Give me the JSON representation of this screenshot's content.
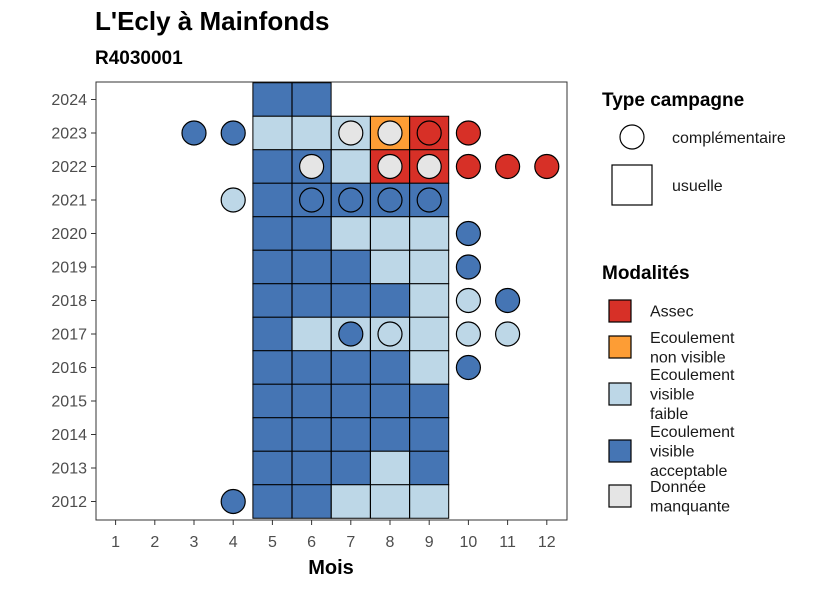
{
  "chart_data": {
    "type": "heatmap",
    "title": "L'Ecly à Mainfonds",
    "subtitle": "R4030001",
    "xlabel": "Mois",
    "ylabel": "",
    "x_ticks": [
      "1",
      "2",
      "3",
      "4",
      "5",
      "6",
      "7",
      "8",
      "9",
      "10",
      "11",
      "12"
    ],
    "y_ticks": [
      "2012",
      "2013",
      "2014",
      "2015",
      "2016",
      "2017",
      "2018",
      "2019",
      "2020",
      "2021",
      "2022",
      "2023",
      "2024"
    ],
    "colors": {
      "Assec": "#d73027",
      "Ecoulement non visible": "#fd9d35",
      "Ecoulement visible faible": "#bdd7e7",
      "Ecoulement visible acceptable": "#4575b4",
      "Donnée manquante": "#e5e5e5"
    },
    "legend_campaign": {
      "title": "Type campagne",
      "items": [
        {
          "label": "complémentaire",
          "shape": "circle"
        },
        {
          "label": "usuelle",
          "shape": "square"
        }
      ]
    },
    "legend_modalities": {
      "title": "Modalités",
      "items": [
        {
          "key": "Assec",
          "lines": [
            "Assec"
          ]
        },
        {
          "key": "Ecoulement non visible",
          "lines": [
            "Ecoulement",
            "non visible"
          ]
        },
        {
          "key": "Ecoulement visible faible",
          "lines": [
            "Ecoulement",
            "visible",
            "faible"
          ]
        },
        {
          "key": "Ecoulement visible acceptable",
          "lines": [
            "Ecoulement",
            "visible",
            "acceptable"
          ]
        },
        {
          "key": "Donnée manquante",
          "lines": [
            "Donnée",
            "manquante"
          ]
        }
      ]
    },
    "squares": [
      {
        "year": 2024,
        "month": 5,
        "v": "Ecoulement visible acceptable"
      },
      {
        "year": 2024,
        "month": 6,
        "v": "Ecoulement visible acceptable"
      },
      {
        "year": 2023,
        "month": 5,
        "v": "Ecoulement visible faible"
      },
      {
        "year": 2023,
        "month": 6,
        "v": "Ecoulement visible faible"
      },
      {
        "year": 2023,
        "month": 7,
        "v": "Ecoulement visible faible"
      },
      {
        "year": 2023,
        "month": 8,
        "v": "Ecoulement non visible"
      },
      {
        "year": 2023,
        "month": 9,
        "v": "Assec"
      },
      {
        "year": 2022,
        "month": 5,
        "v": "Ecoulement visible acceptable"
      },
      {
        "year": 2022,
        "month": 6,
        "v": "Ecoulement visible acceptable"
      },
      {
        "year": 2022,
        "month": 7,
        "v": "Ecoulement visible faible"
      },
      {
        "year": 2022,
        "month": 8,
        "v": "Assec"
      },
      {
        "year": 2022,
        "month": 9,
        "v": "Assec"
      },
      {
        "year": 2021,
        "month": 5,
        "v": "Ecoulement visible acceptable"
      },
      {
        "year": 2021,
        "month": 6,
        "v": "Ecoulement visible acceptable"
      },
      {
        "year": 2021,
        "month": 7,
        "v": "Ecoulement visible acceptable"
      },
      {
        "year": 2021,
        "month": 8,
        "v": "Ecoulement visible acceptable"
      },
      {
        "year": 2021,
        "month": 9,
        "v": "Ecoulement visible acceptable"
      },
      {
        "year": 2020,
        "month": 5,
        "v": "Ecoulement visible acceptable"
      },
      {
        "year": 2020,
        "month": 6,
        "v": "Ecoulement visible acceptable"
      },
      {
        "year": 2020,
        "month": 7,
        "v": "Ecoulement visible faible"
      },
      {
        "year": 2020,
        "month": 8,
        "v": "Ecoulement visible faible"
      },
      {
        "year": 2020,
        "month": 9,
        "v": "Ecoulement visible faible"
      },
      {
        "year": 2019,
        "month": 5,
        "v": "Ecoulement visible acceptable"
      },
      {
        "year": 2019,
        "month": 6,
        "v": "Ecoulement visible acceptable"
      },
      {
        "year": 2019,
        "month": 7,
        "v": "Ecoulement visible acceptable"
      },
      {
        "year": 2019,
        "month": 8,
        "v": "Ecoulement visible faible"
      },
      {
        "year": 2019,
        "month": 9,
        "v": "Ecoulement visible faible"
      },
      {
        "year": 2018,
        "month": 5,
        "v": "Ecoulement visible acceptable"
      },
      {
        "year": 2018,
        "month": 6,
        "v": "Ecoulement visible acceptable"
      },
      {
        "year": 2018,
        "month": 7,
        "v": "Ecoulement visible acceptable"
      },
      {
        "year": 2018,
        "month": 8,
        "v": "Ecoulement visible acceptable"
      },
      {
        "year": 2018,
        "month": 9,
        "v": "Ecoulement visible faible"
      },
      {
        "year": 2017,
        "month": 5,
        "v": "Ecoulement visible acceptable"
      },
      {
        "year": 2017,
        "month": 6,
        "v": "Ecoulement visible faible"
      },
      {
        "year": 2017,
        "month": 7,
        "v": "Ecoulement visible faible"
      },
      {
        "year": 2017,
        "month": 8,
        "v": "Ecoulement visible faible"
      },
      {
        "year": 2017,
        "month": 9,
        "v": "Ecoulement visible faible"
      },
      {
        "year": 2016,
        "month": 5,
        "v": "Ecoulement visible acceptable"
      },
      {
        "year": 2016,
        "month": 6,
        "v": "Ecoulement visible acceptable"
      },
      {
        "year": 2016,
        "month": 7,
        "v": "Ecoulement visible acceptable"
      },
      {
        "year": 2016,
        "month": 8,
        "v": "Ecoulement visible acceptable"
      },
      {
        "year": 2016,
        "month": 9,
        "v": "Ecoulement visible faible"
      },
      {
        "year": 2015,
        "month": 5,
        "v": "Ecoulement visible acceptable"
      },
      {
        "year": 2015,
        "month": 6,
        "v": "Ecoulement visible acceptable"
      },
      {
        "year": 2015,
        "month": 7,
        "v": "Ecoulement visible acceptable"
      },
      {
        "year": 2015,
        "month": 8,
        "v": "Ecoulement visible acceptable"
      },
      {
        "year": 2015,
        "month": 9,
        "v": "Ecoulement visible acceptable"
      },
      {
        "year": 2014,
        "month": 5,
        "v": "Ecoulement visible acceptable"
      },
      {
        "year": 2014,
        "month": 6,
        "v": "Ecoulement visible acceptable"
      },
      {
        "year": 2014,
        "month": 7,
        "v": "Ecoulement visible acceptable"
      },
      {
        "year": 2014,
        "month": 8,
        "v": "Ecoulement visible acceptable"
      },
      {
        "year": 2014,
        "month": 9,
        "v": "Ecoulement visible acceptable"
      },
      {
        "year": 2013,
        "month": 5,
        "v": "Ecoulement visible acceptable"
      },
      {
        "year": 2013,
        "month": 6,
        "v": "Ecoulement visible acceptable"
      },
      {
        "year": 2013,
        "month": 7,
        "v": "Ecoulement visible acceptable"
      },
      {
        "year": 2013,
        "month": 8,
        "v": "Ecoulement visible faible"
      },
      {
        "year": 2013,
        "month": 9,
        "v": "Ecoulement visible acceptable"
      },
      {
        "year": 2012,
        "month": 5,
        "v": "Ecoulement visible acceptable"
      },
      {
        "year": 2012,
        "month": 6,
        "v": "Ecoulement visible acceptable"
      },
      {
        "year": 2012,
        "month": 7,
        "v": "Ecoulement visible faible"
      },
      {
        "year": 2012,
        "month": 8,
        "v": "Ecoulement visible faible"
      },
      {
        "year": 2012,
        "month": 9,
        "v": "Ecoulement visible faible"
      }
    ],
    "circles": [
      {
        "year": 2023,
        "month": 3,
        "v": "Ecoulement visible acceptable"
      },
      {
        "year": 2023,
        "month": 4,
        "v": "Ecoulement visible acceptable"
      },
      {
        "year": 2023,
        "month": 7,
        "v": "Donnée manquante"
      },
      {
        "year": 2023,
        "month": 8,
        "v": "Donnée manquante"
      },
      {
        "year": 2023,
        "month": 9,
        "v": "Assec"
      },
      {
        "year": 2023,
        "month": 10,
        "v": "Assec"
      },
      {
        "year": 2022,
        "month": 6,
        "v": "Donnée manquante"
      },
      {
        "year": 2022,
        "month": 8,
        "v": "Donnée manquante"
      },
      {
        "year": 2022,
        "month": 9,
        "v": "Donnée manquante"
      },
      {
        "year": 2022,
        "month": 10,
        "v": "Assec"
      },
      {
        "year": 2022,
        "month": 11,
        "v": "Assec"
      },
      {
        "year": 2022,
        "month": 12,
        "v": "Assec"
      },
      {
        "year": 2021,
        "month": 4,
        "v": "Ecoulement visible faible"
      },
      {
        "year": 2021,
        "month": 6,
        "v": "Ecoulement visible acceptable"
      },
      {
        "year": 2021,
        "month": 7,
        "v": "Ecoulement visible acceptable"
      },
      {
        "year": 2021,
        "month": 8,
        "v": "Ecoulement visible acceptable"
      },
      {
        "year": 2021,
        "month": 9,
        "v": "Ecoulement visible acceptable"
      },
      {
        "year": 2020,
        "month": 10,
        "v": "Ecoulement visible acceptable"
      },
      {
        "year": 2019,
        "month": 10,
        "v": "Ecoulement visible acceptable"
      },
      {
        "year": 2018,
        "month": 10,
        "v": "Ecoulement visible faible"
      },
      {
        "year": 2018,
        "month": 11,
        "v": "Ecoulement visible acceptable"
      },
      {
        "year": 2017,
        "month": 7,
        "v": "Ecoulement visible acceptable"
      },
      {
        "year": 2017,
        "month": 8,
        "v": "Ecoulement visible faible"
      },
      {
        "year": 2017,
        "month": 10,
        "v": "Ecoulement visible faible"
      },
      {
        "year": 2017,
        "month": 11,
        "v": "Ecoulement visible faible"
      },
      {
        "year": 2016,
        "month": 10,
        "v": "Ecoulement visible acceptable"
      },
      {
        "year": 2012,
        "month": 4,
        "v": "Ecoulement visible acceptable"
      }
    ]
  }
}
